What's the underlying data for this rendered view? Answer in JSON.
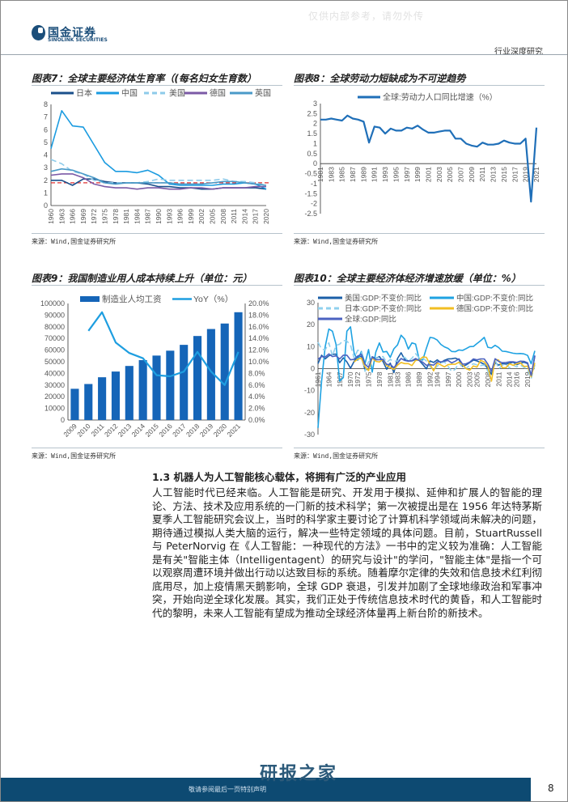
{
  "header": {
    "logo_cn": "国金证券",
    "logo_en": "SINOLINK SECURITIES",
    "watermark": "仅供内部参考，请勿外传",
    "report_type": "行业深度研究"
  },
  "charts_meta": [
    {
      "title": "图表7：全球主要经济体生育率（(每名妇女生育数）",
      "source": "来源：Wind,国金证券研究所"
    },
    {
      "title": "图表8：全球劳动力短缺成为不可逆趋势",
      "source": "来源：Wind,国金证券研究所"
    },
    {
      "title": "图表9：我国制造业用人成本持续上升（单位：元）",
      "source": "来源：Wind,国金证券研究所"
    },
    {
      "title": "图表10：全球主要经济体经济增速放缓（单位：%）",
      "source": "来源：Wind,国金证券研究所"
    }
  ],
  "chart_data": [
    {
      "type": "line",
      "x_start": 1960,
      "x_step": 3,
      "x_labels": [
        "1960",
        "1963",
        "1966",
        "1969",
        "1972",
        "1975",
        "1978",
        "1981",
        "1984",
        "1987",
        "1990",
        "1993",
        "1996",
        "1999",
        "2002",
        "2005",
        "2008",
        "2011",
        "2014",
        "2017",
        "2020"
      ],
      "ylim": [
        0,
        8
      ],
      "yticks": [
        0,
        1,
        2,
        3,
        4,
        5,
        6,
        7,
        8
      ],
      "reference_line": {
        "value": 1.8,
        "color": "#e03030",
        "style": "dashed"
      },
      "legend": "top",
      "series": [
        {
          "name": "日本",
          "color": "#1a4f8b",
          "dash": false,
          "values": [
            2.0,
            2.0,
            1.6,
            2.1,
            2.1,
            1.9,
            1.8,
            1.8,
            1.8,
            1.7,
            1.5,
            1.5,
            1.4,
            1.4,
            1.3,
            1.3,
            1.4,
            1.4,
            1.4,
            1.4,
            1.3
          ]
        },
        {
          "name": "中国",
          "color": "#1a9be0",
          "dash": false,
          "values": [
            4.5,
            7.5,
            6.3,
            6.2,
            4.8,
            3.4,
            2.7,
            2.7,
            2.6,
            2.8,
            2.4,
            1.7,
            1.6,
            1.6,
            1.6,
            1.6,
            1.7,
            1.7,
            1.8,
            1.7,
            1.3
          ]
        },
        {
          "name": "美国",
          "color": "#8ecbea",
          "dash": true,
          "values": [
            3.65,
            3.3,
            2.7,
            2.5,
            2.0,
            1.8,
            1.8,
            1.8,
            1.8,
            1.9,
            2.1,
            2.0,
            2.0,
            2.0,
            2.0,
            2.0,
            2.1,
            1.9,
            1.9,
            1.8,
            1.6
          ]
        },
        {
          "name": "德国",
          "color": "#7b5aa6",
          "dash": false,
          "values": [
            2.4,
            2.5,
            2.5,
            2.2,
            1.7,
            1.5,
            1.4,
            1.4,
            1.3,
            1.4,
            1.4,
            1.3,
            1.3,
            1.4,
            1.4,
            1.3,
            1.4,
            1.4,
            1.4,
            1.5,
            1.5
          ]
        },
        {
          "name": "英国",
          "color": "#4a9ac8",
          "dash": false,
          "values": [
            2.7,
            2.9,
            2.8,
            2.5,
            2.2,
            1.8,
            1.7,
            1.8,
            1.8,
            1.8,
            1.8,
            1.8,
            1.7,
            1.7,
            1.7,
            1.8,
            1.9,
            1.9,
            1.8,
            1.7,
            1.6
          ]
        }
      ]
    },
    {
      "type": "line",
      "x_start": 1981,
      "x_step": 1,
      "x_labels": [
        "1981",
        "1983",
        "1985",
        "1987",
        "1989",
        "1991",
        "1993",
        "1995",
        "1997",
        "1999",
        "2001",
        "2003",
        "2005",
        "2007",
        "2009",
        "2011",
        "2013",
        "2015",
        "2017",
        "2019",
        "2021"
      ],
      "ylim": [
        -2.5,
        3
      ],
      "yticks": [
        -2.5,
        -2,
        -1.5,
        -1,
        -0.5,
        0,
        0.5,
        1,
        1.5,
        2,
        2.5,
        3
      ],
      "legend": "top",
      "series": [
        {
          "name": "全球:劳动力人口同比增速（%）",
          "color": "#1f6fb8",
          "dash": false,
          "values": [
            2.2,
            2.2,
            2.25,
            2.2,
            2.15,
            2.4,
            2.25,
            2.2,
            2.1,
            1.05,
            1.85,
            1.8,
            1.5,
            1.75,
            1.65,
            1.65,
            1.8,
            1.75,
            1.9,
            1.7,
            1.55,
            1.55,
            1.6,
            1.65,
            1.65,
            1.25,
            1.25,
            1.0,
            0.9,
            0.85,
            1.05,
            0.95,
            0.95,
            1.0,
            1.15,
            1.05,
            1.0,
            1.0,
            1.25,
            -1.9,
            1.8
          ]
        }
      ]
    },
    {
      "type": "bar+line",
      "categories": [
        "2009",
        "2010",
        "2011",
        "2012",
        "2013",
        "2014",
        "2015",
        "2016",
        "2017",
        "2018",
        "2019",
        "2020",
        "2021"
      ],
      "ylim_left": [
        0,
        100000
      ],
      "yticks_left": [
        "0",
        "10000",
        "20000",
        "30000",
        "40000",
        "50000",
        "60000",
        "70000",
        "80000",
        "90000",
        "100000"
      ],
      "ylim_right": [
        0,
        20
      ],
      "yticks_right": [
        "0.0%",
        "2.0%",
        "4.0%",
        "6.0%",
        "8.0%",
        "10.0%",
        "12.0%",
        "14.0%",
        "16.0%",
        "18.0%",
        "20.0%"
      ],
      "legend": "top",
      "bar_series": {
        "name": "制造业人均工资",
        "color": "#1565b8",
        "values": [
          26800,
          30900,
          36700,
          41600,
          46400,
          51400,
          55300,
          59500,
          64500,
          72100,
          78100,
          82800,
          92500
        ]
      },
      "line_series": {
        "name": "YoY（%）",
        "color": "#1e9ee0",
        "values": [
          null,
          15.3,
          18.5,
          13.3,
          11.5,
          10.6,
          7.7,
          7.5,
          8.3,
          11.7,
          8.3,
          6.0,
          11.7
        ]
      }
    },
    {
      "type": "line",
      "x_start": 1961,
      "x_step": 1,
      "x_labels": [
        "1961",
        "1964",
        "1967",
        "1970",
        "1972",
        "1975",
        "1978",
        "1981",
        "1983",
        "1986",
        "1989",
        "1992",
        "1994",
        "1997",
        "2000",
        "2003",
        "2005",
        "2008",
        "2011",
        "2014",
        "2016",
        "2019"
      ],
      "ylim": [
        -30,
        30
      ],
      "yticks": [
        -30,
        -20,
        -10,
        0,
        10,
        20,
        30
      ],
      "legend": "top",
      "series": [
        {
          "name": "美国:GDP:不变价:同比",
          "color": "#1b5fa8",
          "dash": false,
          "values": [
            2.3,
            6.1,
            4.4,
            5.8,
            6.5,
            6.6,
            2.7,
            4.9,
            3.1,
            0.2,
            3.3,
            5.3,
            5.6,
            -0.5,
            -0.2,
            5.4,
            4.6,
            5.5,
            3.2,
            -0.3,
            2.5,
            -1.8,
            4.6,
            7.2,
            4.2,
            3.5,
            3.5,
            4.2,
            3.7,
            1.9,
            -0.1,
            3.5,
            2.8,
            4,
            2.7,
            3.8,
            4.4,
            4.5,
            4.8,
            4.1,
            1,
            1.7,
            2.8,
            3.9,
            3.5,
            2.8,
            2,
            0.1,
            -2.6,
            2.7,
            1.6,
            2.3,
            2.1,
            2.5,
            2.9,
            1.8,
            2.5,
            2.9,
            2.3,
            -3.4,
            5.7
          ]
        },
        {
          "name": "中国:GDP:不变价:同比",
          "color": "#1ea2e2",
          "dash": false,
          "values": [
            -27,
            -5.6,
            10,
            18,
            17,
            11,
            -5.7,
            -4.1,
            17,
            19,
            7,
            3.8,
            7.8,
            2.3,
            8.7,
            -1.6,
            7.6,
            11.7,
            7.6,
            7.8,
            5.1,
            9,
            10.8,
            15.2,
            13.4,
            8.9,
            11.7,
            11.2,
            4.2,
            3.9,
            9.3,
            14.2,
            13.9,
            13,
            11,
            9.9,
            9.2,
            7.8,
            7.7,
            8.5,
            8.3,
            9.1,
            10,
            10.1,
            11.4,
            12.7,
            14.2,
            9.7,
            9.4,
            10.6,
            9.6,
            7.9,
            7.8,
            7.4,
            7,
            6.8,
            6.9,
            6.7,
            6,
            2.2,
            8.1
          ]
        },
        {
          "name": "日本:GDP:不变价:同比",
          "color": "#8fd0ee",
          "dash": true,
          "values": [
            12,
            8.9,
            8.5,
            11.7,
            5.8,
            10.6,
            11.1,
            12.9,
            12.5,
            10.7,
            4.7,
            8.4,
            8,
            -1.2,
            3.1,
            4,
            4.4,
            5.3,
            5.5,
            2.8,
            4.2,
            3.3,
            3.5,
            4.5,
            5.2,
            3.3,
            4.7,
            6.8,
            4.9,
            4.8,
            3.5,
            0.9,
            -0.5,
            1.1,
            2.6,
            3.1,
            1,
            -1.3,
            -0.3,
            2.8,
            0.4,
            0.1,
            1.5,
            2.2,
            1.7,
            1.4,
            1.7,
            -1.1,
            -5.4,
            4.2,
            -0.1,
            1.5,
            2,
            0.3,
            1.6,
            0.8,
            1.7,
            0.6,
            -0.4,
            -4.5,
            1.7
          ]
        },
        {
          "name": "德国:GDP:不变价:同比",
          "color": "#f2be22",
          "dash": false,
          "values": [
            null,
            null,
            null,
            null,
            null,
            null,
            null,
            null,
            null,
            null,
            3.1,
            4.3,
            4.8,
            0.9,
            -0.9,
            4.9,
            3.3,
            3,
            4.2,
            1.4,
            0.5,
            -0.4,
            1.6,
            2.8,
            2.3,
            2.3,
            1.4,
            3.7,
            3.9,
            5.3,
            5.1,
            1.9,
            -1,
            2.5,
            1.7,
            0.8,
            1.8,
            2,
            2,
            2.9,
            1.7,
            0,
            -0.7,
            1.2,
            0.7,
            3.8,
            3,
            1,
            -5.7,
            4.2,
            3.9,
            0.4,
            0.4,
            2.2,
            1.5,
            2.2,
            2.7,
            1,
            1.1,
            -3.7,
            2.6
          ]
        },
        {
          "name": "全球:GDP:同比",
          "color": "#4b62c0",
          "dash": false,
          "values": [
            4.3,
            5.5,
            5.3,
            6.7,
            5.5,
            5.8,
            4.4,
            6.1,
            6.1,
            4,
            4.2,
            5.7,
            6.5,
            2,
            0.6,
            5.3,
            4,
            4.1,
            4.2,
            1.9,
            1.9,
            0.4,
            2.5,
            4.6,
            3.7,
            3.4,
            3.6,
            4.6,
            3.7,
            2.9,
            1.5,
            1.8,
            1.6,
            3.1,
            3.1,
            3.4,
            3.7,
            2.6,
            3.4,
            4.5,
            2,
            2.2,
            3,
            4.4,
            4,
            4.4,
            4.4,
            2.1,
            -1.3,
            4.5,
            3.3,
            2.7,
            2.8,
            3.1,
            3.1,
            2.8,
            3.4,
            3.3,
            2.6,
            -3.1,
            6
          ]
        }
      ]
    }
  ],
  "section": {
    "heading": "1.3 机器人为人工智能核心载体，将拥有广泛的产业应用",
    "body": "人工智能时代已经来临。人工智能是研究、开发用于模拟、延伸和扩展人的智能的理论、方法、技术及应用系统的一门新的技术科学；第一次被提出是在 1956 年达特茅斯夏季人工智能研究会议上，当时的科学家主要讨论了计算机科学领域尚未解决的问题，期待通过模拟人类大脑的运行，解决一些特定领域的具体问题。目前，StuartRussell 与 PeterNorvig 在《人工智能：一种现代的方法》一书中的定义较为准确：人工智能是有关\"智能主体（Intelligentagent）的研究与设计\"的学问，\"智能主体\"是指一个可以观察周遭环境并做出行动以达致目标的系统。随着摩尔定律的失效和信息技术红利彻底用尽，加上疫情黑天鹅影响，全球 GDP 衰退，引发并加剧了全球地缘政治和军事冲突，开始向逆全球化发展。其实，我们正处于传统信息技术时代的黄昏，和人工智能时代的黎明，未来人工智能有望成为推动全球经济体量再上新台阶的新技术。"
  },
  "footer": {
    "note": "敬请参阅最后一页特别声明",
    "brand": "研报之家",
    "page_number": "8"
  }
}
